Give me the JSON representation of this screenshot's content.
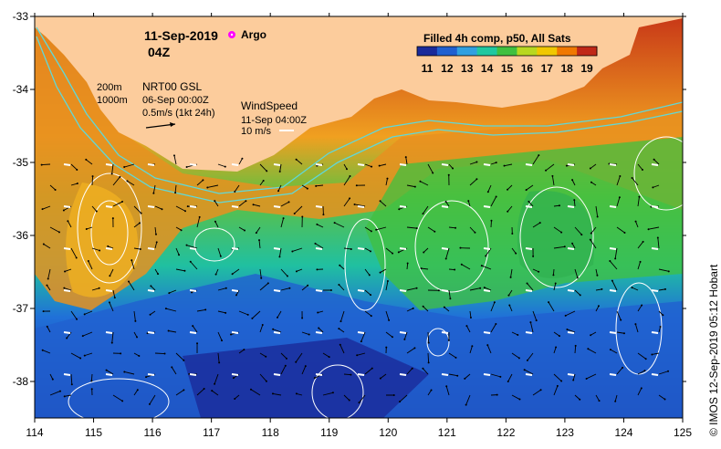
{
  "date": "11-Sep-2019",
  "hour": "04Z",
  "argo_label": "Argo",
  "product": "Filled 4h comp, p50, All Sats",
  "colorbar": {
    "ticks": [
      "11",
      "12",
      "13",
      "14",
      "15",
      "16",
      "17",
      "18",
      "19"
    ],
    "colors": [
      "#1a2a9a",
      "#2060d0",
      "#30a0e0",
      "#20c8a0",
      "#40c040",
      "#b8d820",
      "#f0c800",
      "#f07800",
      "#c02818"
    ]
  },
  "depth_contours": [
    "200m",
    "1000m"
  ],
  "gsl": {
    "title": "NRT00 GSL",
    "time": "06-Sep 00:00Z",
    "scale": "0.5m/s (1kt 24h)"
  },
  "wind": {
    "title": "WindSpeed",
    "time": "11-Sep 04:00Z",
    "scale": "10 m/s"
  },
  "axes": {
    "lon_ticks": [
      "114",
      "115",
      "116",
      "117",
      "118",
      "119",
      "120",
      "121",
      "122",
      "123",
      "124",
      "125"
    ],
    "lat_ticks": [
      "-33",
      "-34",
      "-35",
      "-36",
      "-37",
      "-38"
    ],
    "lon_range": [
      114,
      125
    ],
    "lat_range": [
      -38.5,
      -33
    ]
  },
  "credit": "© IMOS 12-Sep-2019 05:12 Hobart"
}
